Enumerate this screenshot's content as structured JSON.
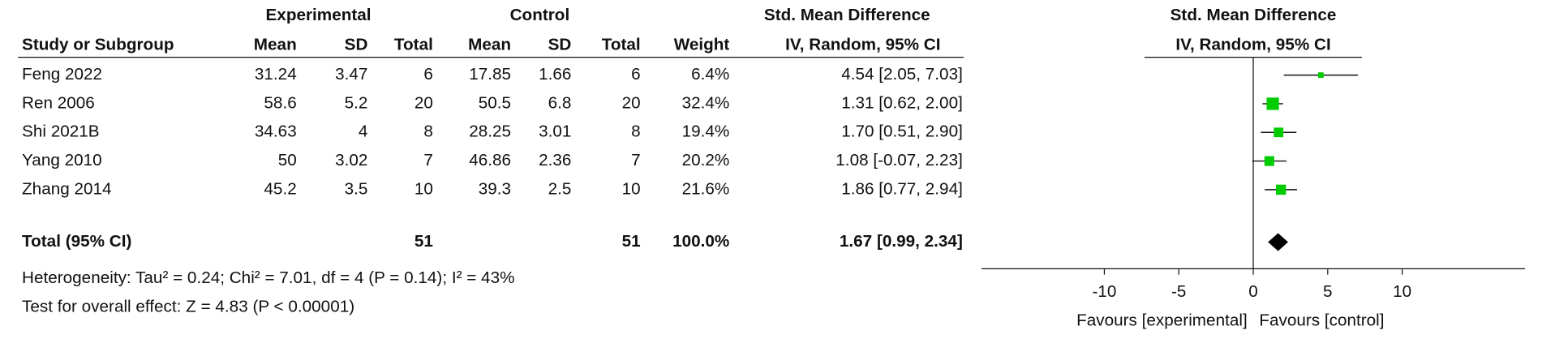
{
  "table": {
    "group_headers": [
      "Experimental",
      "Control",
      "Std. Mean Difference"
    ],
    "columns": [
      "Study or Subgroup",
      "Mean",
      "SD",
      "Total",
      "Mean",
      "SD",
      "Total",
      "Weight",
      "IV, Random, 95% CI"
    ],
    "rows": [
      [
        "Feng 2022",
        "31.24",
        "3.47",
        "6",
        "17.85",
        "1.66",
        "6",
        "6.4%",
        "4.54 [2.05, 7.03]"
      ],
      [
        "Ren 2006",
        "58.6",
        "5.2",
        "20",
        "50.5",
        "6.8",
        "20",
        "32.4%",
        "1.31 [0.62, 2.00]"
      ],
      [
        "Shi 2021B",
        "34.63",
        "4",
        "8",
        "28.25",
        "3.01",
        "8",
        "19.4%",
        "1.70 [0.51, 2.90]"
      ],
      [
        "Yang 2010",
        "50",
        "3.02",
        "7",
        "46.86",
        "2.36",
        "7",
        "20.2%",
        "1.08 [-0.07, 2.23]"
      ],
      [
        "Zhang 2014",
        "45.2",
        "3.5",
        "10",
        "39.3",
        "2.5",
        "10",
        "21.6%",
        "1.86 [0.77, 2.94]"
      ]
    ],
    "total": [
      "Total (95% CI)",
      "51",
      "51",
      "100.0%",
      "1.67 [0.99, 2.34]"
    ],
    "heterogeneity": "Heterogeneity: Tau² = 0.24; Chi² = 7.01, df = 4 (P = 0.14); I² = 43%",
    "overall_effect": "Test for overall effect: Z = 4.83 (P < 0.00001)"
  },
  "chart_data": {
    "type": "forest",
    "title": "Std. Mean Difference",
    "subtitle": "IV, Random, 95% CI",
    "values": [
      4.54,
      1.31,
      1.7,
      1.08,
      1.86
    ],
    "ci_lower": [
      2.05,
      0.62,
      0.51,
      -0.07,
      0.77
    ],
    "ci_upper": [
      7.03,
      2.0,
      2.9,
      2.23,
      2.94
    ],
    "weights": [
      6.4,
      32.4,
      19.4,
      20.2,
      21.6
    ],
    "pooled": {
      "value": 1.67,
      "lower": 0.99,
      "upper": 2.34
    },
    "color": "#00cc00",
    "xlim": [
      -18.25,
      18.25
    ],
    "xticks": [
      -10,
      -5,
      0,
      5,
      10
    ],
    "x_label_left": "Favours [experimental]",
    "x_label_right": "Favours [control]"
  }
}
